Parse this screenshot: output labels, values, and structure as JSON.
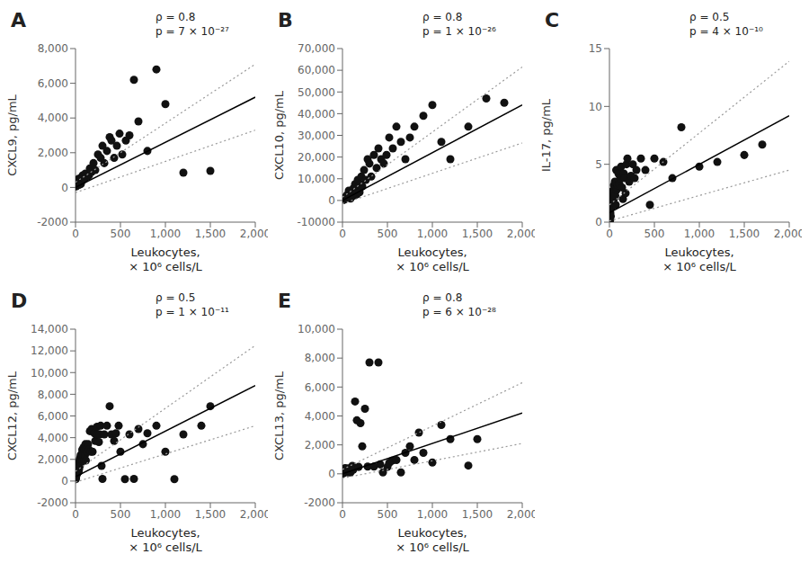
{
  "chart_data": [
    {
      "type": "scatter",
      "title": "A",
      "x_label": "Leukocytes,\n× 10⁶ cells/L",
      "y_label": "CXCL9, pg/mL",
      "annotations": [
        "ρ = 0.8",
        "p = 7 × 10⁻²⁷"
      ],
      "grid": false,
      "xlim": [
        0,
        2000
      ],
      "xticks": [
        0,
        500,
        {
          "value": 1000,
          "label": "1,000"
        },
        {
          "value": 1500,
          "label": "1,500"
        },
        {
          "value": 2000,
          "label": "2,000"
        }
      ],
      "ylim": [
        -2000,
        8000
      ],
      "yticks": [
        -2000,
        0,
        {
          "value": 2000,
          "label": "2,000"
        },
        {
          "value": 4000,
          "label": "4,000"
        },
        {
          "value": 6000,
          "label": "6,000"
        },
        {
          "value": 8000,
          "label": "8,000"
        }
      ],
      "series": [
        {
          "type": "scatter",
          "color": "#111111",
          "x": [
            3,
            5,
            6,
            8,
            10,
            12,
            15,
            18,
            20,
            22,
            25,
            28,
            30,
            35,
            40,
            45,
            50,
            55,
            60,
            70,
            80,
            90,
            100,
            110,
            120,
            140,
            150,
            160,
            180,
            200,
            220,
            250,
            280,
            300,
            320,
            350,
            380,
            400,
            430,
            460,
            490,
            520,
            560,
            600,
            650,
            700,
            800,
            900,
            1000,
            1200,
            1500
          ],
          "values": [
            80,
            120,
            60,
            150,
            200,
            100,
            250,
            150,
            350,
            180,
            400,
            220,
            300,
            500,
            150,
            350,
            280,
            450,
            200,
            600,
            700,
            550,
            480,
            800,
            750,
            650,
            700,
            1100,
            900,
            1400,
            1000,
            1900,
            1700,
            2400,
            1400,
            2100,
            2900,
            2700,
            1700,
            2400,
            3100,
            1900,
            2700,
            3000,
            6200,
            3800,
            2100,
            6800,
            4800,
            850,
            950
          ]
        },
        {
          "type": "line",
          "color": "#000000",
          "line_style": "solid",
          "x": [
            0,
            2000
          ],
          "values": [
            0,
            5200
          ]
        },
        {
          "type": "line",
          "color": "#999999",
          "line_style": "dotted",
          "x": [
            0,
            2000
          ],
          "values": [
            300,
            7100
          ]
        },
        {
          "type": "line",
          "color": "#999999",
          "line_style": "dotted",
          "x": [
            0,
            2000
          ],
          "values": [
            -300,
            3300
          ]
        }
      ]
    },
    {
      "type": "scatter",
      "title": "B",
      "x_label": "Leukocytes,\n× 10⁶ cells/L",
      "y_label": "CXCL10, pg/mL",
      "annotations": [
        "ρ = 0.8",
        "p = 1 × 10⁻²⁶"
      ],
      "grid": false,
      "xlim": [
        0,
        2000
      ],
      "xticks": [
        0,
        500,
        {
          "value": 1000,
          "label": "1,000"
        },
        {
          "value": 1500,
          "label": "1,500"
        },
        {
          "value": 2000,
          "label": "2,000"
        }
      ],
      "ylim": [
        -10000,
        70000
      ],
      "yticks": [
        -10000,
        0,
        {
          "value": 10000,
          "label": "10,000"
        },
        {
          "value": 20000,
          "label": "20,000"
        },
        {
          "value": 30000,
          "label": "30,000"
        },
        {
          "value": 40000,
          "label": "40,000"
        },
        {
          "value": 50000,
          "label": "50,000"
        },
        {
          "value": 60000,
          "label": "60,000"
        },
        {
          "value": 70000,
          "label": "70,000"
        }
      ],
      "series": [
        {
          "type": "scatter",
          "color": "#111111",
          "x": [
            3,
            5,
            8,
            10,
            15,
            20,
            25,
            30,
            40,
            50,
            60,
            70,
            80,
            90,
            100,
            110,
            120,
            130,
            140,
            150,
            160,
            170,
            180,
            190,
            200,
            210,
            220,
            240,
            260,
            280,
            300,
            320,
            350,
            380,
            400,
            430,
            460,
            490,
            520,
            560,
            600,
            650,
            700,
            750,
            800,
            900,
            1000,
            1100,
            1200,
            1400,
            1600,
            1800
          ],
          "values": [
            300,
            500,
            200,
            300,
            800,
            700,
            400,
            1200,
            1800,
            2500,
            1200,
            4500,
            1800,
            900,
            2800,
            3500,
            5500,
            2200,
            7500,
            4500,
            2800,
            9500,
            6500,
            3800,
            7500,
            11000,
            6500,
            14000,
            9500,
            19000,
            17000,
            11000,
            21000,
            15000,
            24000,
            19000,
            17000,
            21000,
            29000,
            24000,
            34000,
            27000,
            19000,
            29000,
            34000,
            39000,
            44000,
            27000,
            19000,
            34000,
            47000,
            45000
          ]
        },
        {
          "type": "line",
          "color": "#000000",
          "line_style": "solid",
          "x": [
            0,
            2000
          ],
          "values": [
            0,
            44000
          ]
        },
        {
          "type": "line",
          "color": "#999999",
          "line_style": "dotted",
          "x": [
            0,
            2000
          ],
          "values": [
            1500,
            61500
          ]
        },
        {
          "type": "line",
          "color": "#999999",
          "line_style": "dotted",
          "x": [
            0,
            2000
          ],
          "values": [
            -1500,
            26500
          ]
        }
      ]
    },
    {
      "type": "scatter",
      "title": "C",
      "x_label": "Leukocytes,\n× 10⁶ cells/L",
      "y_label": "IL-17, pg/mL",
      "annotations": [
        "ρ = 0.5",
        "p = 4 × 10⁻¹⁰"
      ],
      "grid": false,
      "xlim": [
        0,
        2000
      ],
      "xticks": [
        0,
        500,
        {
          "value": 1000,
          "label": "1,000"
        },
        {
          "value": 1500,
          "label": "1,500"
        },
        {
          "value": 2000,
          "label": "2,000"
        }
      ],
      "ylim": [
        0,
        15
      ],
      "yticks": [
        0,
        5,
        10,
        15
      ],
      "series": [
        {
          "type": "scatter",
          "color": "#111111",
          "x": [
            3,
            5,
            8,
            10,
            15,
            20,
            25,
            30,
            35,
            40,
            50,
            55,
            60,
            65,
            70,
            75,
            80,
            85,
            90,
            95,
            100,
            110,
            120,
            130,
            140,
            150,
            160,
            170,
            180,
            190,
            200,
            220,
            240,
            260,
            280,
            300,
            350,
            400,
            450,
            500,
            600,
            700,
            800,
            1000,
            1200,
            1500,
            1700
          ],
          "values": [
            0.1,
            0.3,
            0.2,
            0.8,
            0.5,
            1.8,
            1.3,
            2.3,
            2.7,
            1.8,
            3.2,
            2.1,
            3.5,
            2.3,
            1.5,
            4.5,
            2.8,
            3.0,
            3.2,
            4.5,
            4.2,
            3.3,
            3.8,
            4.8,
            3.0,
            2.0,
            4.2,
            3.8,
            2.5,
            5.0,
            5.5,
            3.5,
            4.0,
            5.0,
            3.8,
            4.5,
            5.5,
            4.5,
            1.5,
            5.5,
            5.2,
            3.8,
            8.2,
            4.8,
            5.2,
            5.8,
            6.7
          ]
        },
        {
          "type": "line",
          "color": "#000000",
          "line_style": "solid",
          "x": [
            0,
            2000
          ],
          "values": [
            0.8,
            9.2
          ]
        },
        {
          "type": "line",
          "color": "#999999",
          "line_style": "dotted",
          "x": [
            0,
            2000
          ],
          "values": [
            1.5,
            13.9
          ]
        },
        {
          "type": "line",
          "color": "#999999",
          "line_style": "dotted",
          "x": [
            0,
            2000
          ],
          "values": [
            0.1,
            4.5
          ]
        }
      ]
    },
    {
      "type": "scatter",
      "title": "D",
      "x_label": "Leukocytes,\n× 10⁶ cells/L",
      "y_label": "CXCL12, pg/mL",
      "annotations": [
        "ρ = 0.5",
        "p = 1 × 10⁻¹¹"
      ],
      "grid": false,
      "xlim": [
        0,
        2000
      ],
      "xticks": [
        0,
        500,
        {
          "value": 1000,
          "label": "1,000"
        },
        {
          "value": 1500,
          "label": "1,500"
        },
        {
          "value": 2000,
          "label": "2,000"
        }
      ],
      "ylim": [
        -2000,
        14000
      ],
      "yticks": [
        -2000,
        0,
        {
          "value": 2000,
          "label": "2,000"
        },
        {
          "value": 4000,
          "label": "4,000"
        },
        {
          "value": 6000,
          "label": "6,000"
        },
        {
          "value": 8000,
          "label": "8,000"
        },
        {
          "value": 10000,
          "label": "10,000"
        },
        {
          "value": 12000,
          "label": "12,000"
        },
        {
          "value": 14000,
          "label": "14,000"
        }
      ],
      "series": [
        {
          "type": "scatter",
          "color": "#111111",
          "x": [
            3,
            5,
            8,
            10,
            12,
            15,
            18,
            20,
            22,
            25,
            28,
            30,
            35,
            38,
            40,
            42,
            45,
            48,
            50,
            55,
            58,
            60,
            65,
            68,
            70,
            75,
            78,
            80,
            85,
            90,
            95,
            100,
            105,
            110,
            115,
            120,
            130,
            140,
            150,
            160,
            170,
            180,
            190,
            200,
            210,
            220,
            230,
            240,
            250,
            260,
            270,
            280,
            290,
            300,
            320,
            350,
            380,
            400,
            430,
            450,
            480,
            500,
            550,
            600,
            650,
            700,
            750,
            800,
            900,
            1000,
            1100,
            1200,
            1400,
            1500
          ],
          "values": [
            180,
            280,
            450,
            750,
            600,
            700,
            900,
            1100,
            750,
            1400,
            900,
            1200,
            850,
            1400,
            1100,
            1700,
            1900,
            1400,
            2100,
            1700,
            2400,
            1700,
            2400,
            1900,
            2400,
            2900,
            1900,
            2700,
            2400,
            3100,
            1900,
            2900,
            2400,
            3400,
            1900,
            2900,
            2700,
            3400,
            2900,
            4600,
            2700,
            4800,
            2700,
            4700,
            4400,
            3700,
            4300,
            5000,
            4300,
            3600,
            4300,
            5100,
            1400,
            200,
            4300,
            5100,
            6900,
            4300,
            3700,
            4400,
            5100,
            2700,
            180,
            4300,
            200,
            4800,
            3400,
            4400,
            5100,
            2700,
            180,
            4300,
            5100,
            6900
          ]
        },
        {
          "type": "line",
          "color": "#000000",
          "line_style": "solid",
          "x": [
            0,
            2000
          ],
          "values": [
            400,
            8800
          ]
        },
        {
          "type": "line",
          "color": "#999999",
          "line_style": "dotted",
          "x": [
            0,
            2000
          ],
          "values": [
            900,
            12500
          ]
        },
        {
          "type": "line",
          "color": "#999999",
          "line_style": "dotted",
          "x": [
            0,
            2000
          ],
          "values": [
            -100,
            5100
          ]
        }
      ]
    },
    {
      "type": "scatter",
      "title": "E",
      "x_label": "Leukocytes,\n× 10⁶ cells/L",
      "y_label": "CXCL13, pg/mL",
      "annotations": [
        "ρ = 0.8",
        "p = 6 × 10⁻²⁸"
      ],
      "grid": false,
      "xlim": [
        0,
        2000
      ],
      "xticks": [
        0,
        500,
        {
          "value": 1000,
          "label": "1,000"
        },
        {
          "value": 1500,
          "label": "1,500"
        },
        {
          "value": 2000,
          "label": "2,000"
        }
      ],
      "ylim": [
        -2000,
        10000
      ],
      "yticks": [
        -2000,
        0,
        {
          "value": 2000,
          "label": "2,000"
        },
        {
          "value": 4000,
          "label": "4,000"
        },
        {
          "value": 6000,
          "label": "6,000"
        },
        {
          "value": 8000,
          "label": "8,000"
        },
        {
          "value": 10000,
          "label": "10,000"
        }
      ],
      "series": [
        {
          "type": "scatter",
          "color": "#111111",
          "x": [
            3,
            5,
            8,
            10,
            12,
            15,
            18,
            20,
            22,
            25,
            28,
            30,
            35,
            40,
            45,
            50,
            55,
            60,
            70,
            80,
            90,
            100,
            110,
            120,
            140,
            160,
            180,
            200,
            220,
            250,
            280,
            300,
            350,
            400,
            420,
            450,
            500,
            520,
            550,
            600,
            650,
            700,
            750,
            800,
            850,
            900,
            1000,
            1100,
            1200,
            1400,
            1500
          ],
          "values": [
            40,
            80,
            25,
            150,
            80,
            120,
            250,
            180,
            120,
            350,
            250,
            400,
            180,
            150,
            320,
            350,
            180,
            100,
            380,
            250,
            100,
            380,
            550,
            280,
            5000,
            3700,
            480,
            3500,
            1900,
            4500,
            500,
            7700,
            500,
            7700,
            650,
            100,
            480,
            750,
            900,
            950,
            100,
            1450,
            1900,
            960,
            2850,
            1450,
            780,
            3380,
            2400,
            570,
            2400
          ]
        },
        {
          "type": "line",
          "color": "#000000",
          "line_style": "solid",
          "x": [
            0,
            2000
          ],
          "values": [
            0,
            4200
          ]
        },
        {
          "type": "line",
          "color": "#999999",
          "line_style": "dotted",
          "x": [
            0,
            2000
          ],
          "values": [
            300,
            6300
          ]
        },
        {
          "type": "line",
          "color": "#999999",
          "line_style": "dotted",
          "x": [
            0,
            2000
          ],
          "values": [
            -300,
            2100
          ]
        }
      ]
    }
  ]
}
